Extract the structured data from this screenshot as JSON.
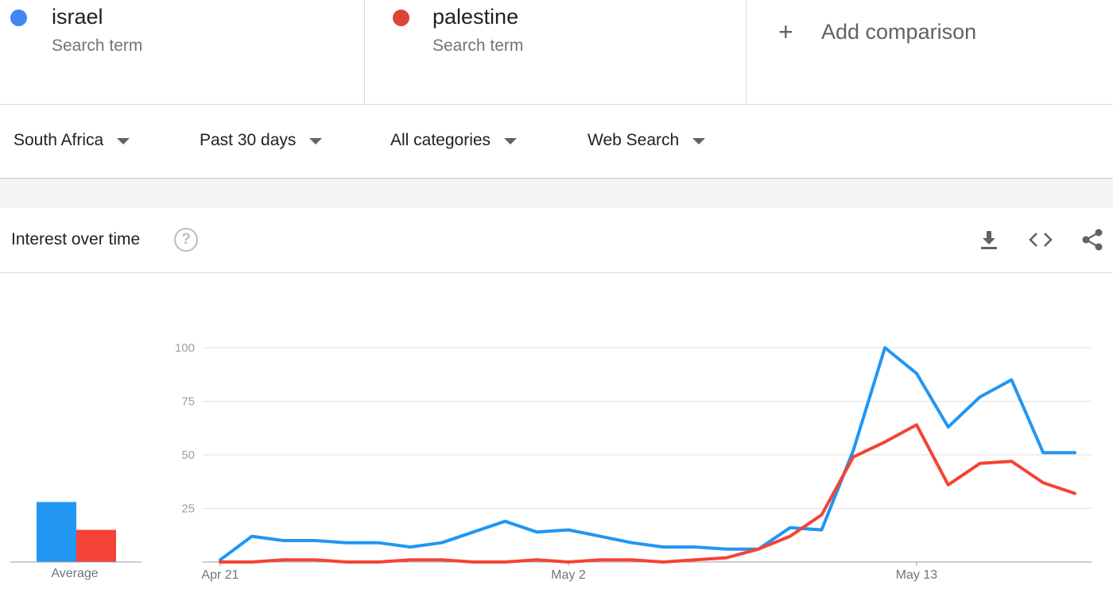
{
  "terms": [
    {
      "name": "israel",
      "subtitle": "Search term",
      "color": "#4285f4"
    },
    {
      "name": "palestine",
      "subtitle": "Search term",
      "color": "#db4437"
    }
  ],
  "add_comparison": {
    "label": "Add comparison",
    "icon": "plus-icon"
  },
  "filters": {
    "region": "South Africa",
    "time_range": "Past 30 days",
    "category": "All categories",
    "search_type": "Web Search"
  },
  "card": {
    "title": "Interest over time",
    "help_icon": "help-icon",
    "actions": [
      "download-icon",
      "embed-code-icon",
      "share-icon"
    ]
  },
  "chart_data": {
    "type": "line",
    "x_tick_labels": [
      "Apr 21",
      "May 2",
      "May 13"
    ],
    "x_tick_indices": [
      0,
      11,
      22
    ],
    "yticks": [
      25,
      50,
      75,
      100
    ],
    "ylim": [
      0,
      100
    ],
    "grid": true,
    "series": [
      {
        "name": "israel",
        "color": "#2196f3",
        "values": [
          1,
          12,
          10,
          10,
          9,
          9,
          7,
          9,
          14,
          19,
          14,
          15,
          12,
          9,
          7,
          7,
          6,
          6,
          16,
          15,
          52,
          100,
          88,
          63,
          77,
          85,
          51,
          51
        ]
      },
      {
        "name": "palestine",
        "color": "#f44336",
        "values": [
          0,
          0,
          1,
          1,
          0,
          0,
          1,
          1,
          0,
          0,
          1,
          0,
          1,
          1,
          0,
          1,
          2,
          6,
          12,
          22,
          49,
          56,
          64,
          36,
          46,
          47,
          37,
          32
        ]
      }
    ],
    "average": {
      "label": "Average",
      "values": [
        28,
        15
      ]
    }
  }
}
